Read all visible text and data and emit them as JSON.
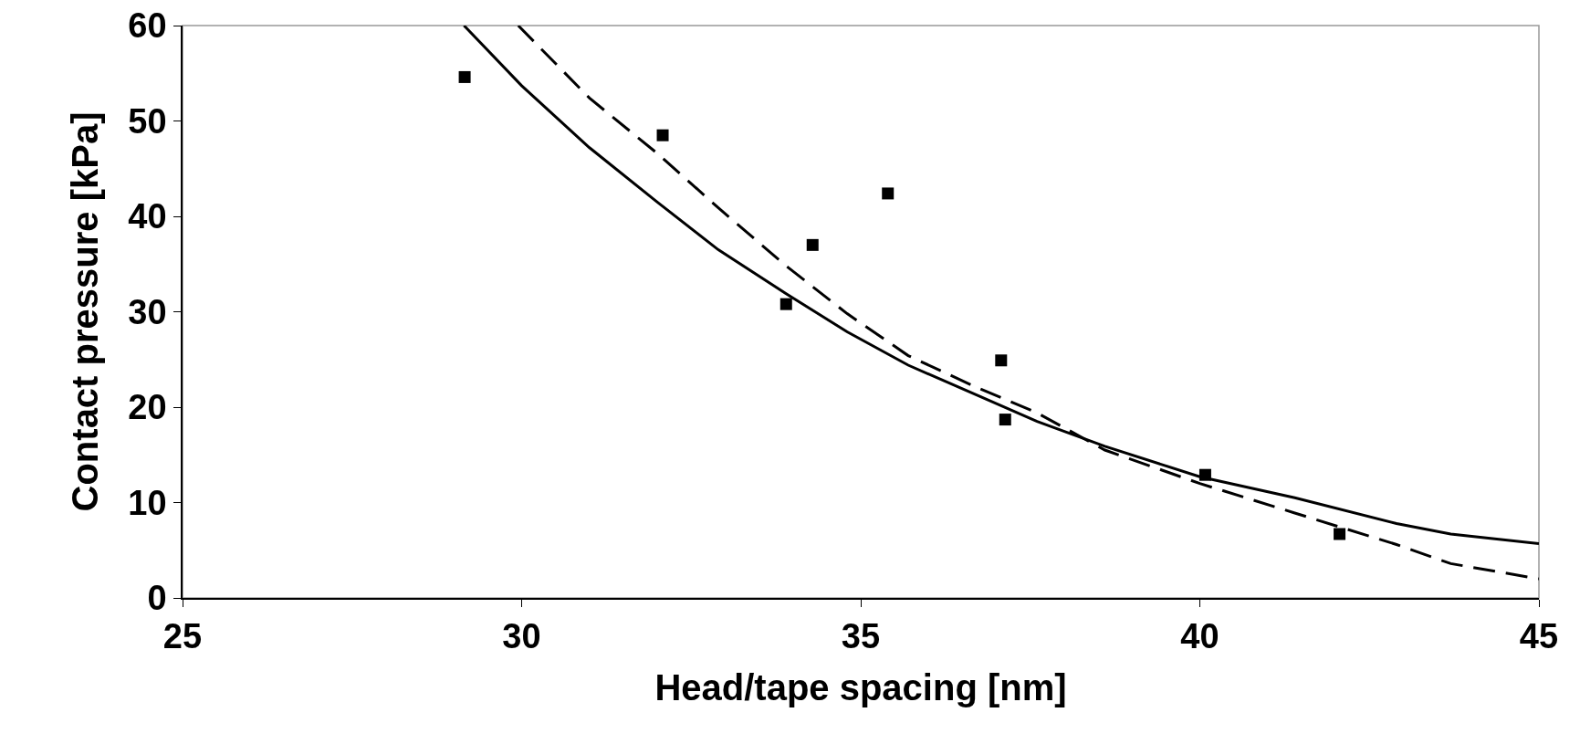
{
  "chart_data": {
    "type": "scatter",
    "xlabel": "Head/tape spacing [nm]",
    "ylabel": "Contact pressure [kPa]",
    "xlim": [
      25,
      45
    ],
    "xticks": [
      25,
      30,
      35,
      40,
      45
    ],
    "ylim": [
      0,
      60
    ],
    "yticks": [
      0,
      10,
      20,
      30,
      40,
      50,
      60
    ],
    "grid": false,
    "series": [
      {
        "marker": "square",
        "color": "#000000",
        "x": [
          29.16,
          32.08,
          33.9,
          34.29,
          35.4,
          37.07,
          37.13,
          40.08,
          42.06
        ],
        "values": [
          54.6,
          48.5,
          30.8,
          37.0,
          42.4,
          24.9,
          18.7,
          12.9,
          6.7
        ]
      },
      {
        "type": "line",
        "marker": "none",
        "line_style": "solid",
        "color": "#000000",
        "x": [
          29.15,
          30.0,
          31.0,
          32.0,
          32.9,
          33.9,
          34.8,
          35.7,
          36.7,
          37.6,
          38.6,
          40.0,
          41.4,
          42.9,
          43.7,
          45.0
        ],
        "values": [
          60,
          53.7,
          47.2,
          41.5,
          36.5,
          31.9,
          27.9,
          24.4,
          21.3,
          18.5,
          15.9,
          12.7,
          10.5,
          7.8,
          6.7,
          5.7
        ]
      },
      {
        "type": "line",
        "marker": "none",
        "line_style": "dashed",
        "color": "#000000",
        "x": [
          29.95,
          31.0,
          32.0,
          32.9,
          33.9,
          34.8,
          35.7,
          36.7,
          37.6,
          38.6,
          40.0,
          41.4,
          42.9,
          43.7,
          45.0
        ],
        "values": [
          60,
          52.4,
          46.6,
          40.9,
          34.8,
          29.8,
          25.4,
          22.1,
          19.4,
          15.5,
          12.0,
          8.9,
          5.6,
          3.6,
          2.0
        ]
      }
    ]
  }
}
